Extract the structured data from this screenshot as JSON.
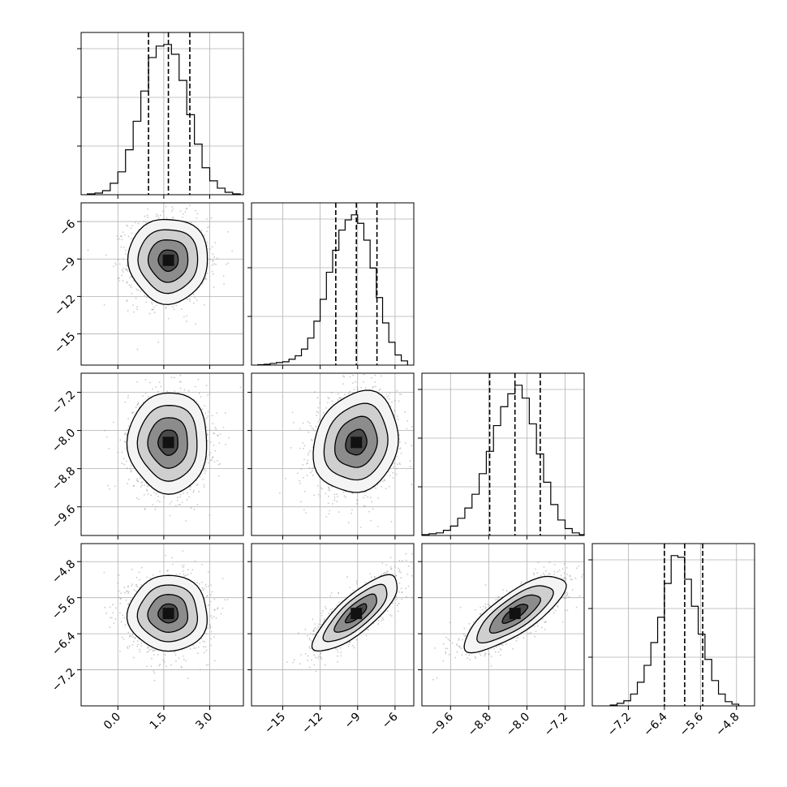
{
  "chart_data": {
    "type": "scatter",
    "layout": "corner",
    "grid": true,
    "colors": {
      "line": "#000000",
      "grid": "#b0b0b0",
      "points": "#8a8a8a",
      "hist_fill": "none"
    },
    "parameters": [
      {
        "range": [
          -1.2,
          4.1
        ],
        "ticks": [
          "0.0",
          "1.5",
          "3.0"
        ],
        "tick_values": [
          0.0,
          1.5,
          3.0
        ],
        "quantiles": [
          1.0,
          1.65,
          2.35
        ],
        "mean": 1.65,
        "sd": 0.65
      },
      {
        "range": [
          -17.5,
          -4.5
        ],
        "ticks": [
          "−15",
          "−12",
          "−9",
          "−6"
        ],
        "tick_values": [
          -15,
          -12,
          -9,
          -6
        ],
        "quantiles": [
          -10.75,
          -9.1,
          -7.45
        ],
        "mean": -9.1,
        "sd": 1.7
      },
      {
        "range": [
          -10.2,
          -6.8
        ],
        "ticks": [
          "−9.6",
          "−8.8",
          "−8.0",
          "−7.2"
        ],
        "tick_values": [
          -9.6,
          -8.8,
          -8.0,
          -7.2
        ],
        "quantiles": [
          -8.78,
          -8.25,
          -7.72
        ],
        "mean": -8.25,
        "sd": 0.53
      },
      {
        "range": [
          -8.0,
          -4.4
        ],
        "ticks": [
          "−7.2",
          "−6.4",
          "−5.6",
          "−4.8"
        ],
        "tick_values": [
          -7.2,
          -6.4,
          -5.6,
          -4.8
        ],
        "quantiles": [
          -6.4,
          -5.95,
          -5.55
        ],
        "mean": -5.95,
        "sd": 0.42
      }
    ],
    "histograms": [
      {
        "param": 0,
        "bin_edges": [
          -1.0,
          -0.75,
          -0.5,
          -0.25,
          0.0,
          0.25,
          0.5,
          0.75,
          1.0,
          1.25,
          1.5,
          1.75,
          2.0,
          2.25,
          2.5,
          2.75,
          3.0,
          3.25,
          3.5,
          3.75,
          4.0
        ],
        "counts": [
          1,
          2,
          5,
          14,
          28,
          55,
          90,
          127,
          168,
          182,
          184,
          172,
          140,
          98,
          62,
          33,
          17,
          8,
          3,
          1
        ]
      },
      {
        "param": 1,
        "bin_edges": [
          -17.0,
          -16.5,
          -16.0,
          -15.5,
          -15.0,
          -14.5,
          -14.0,
          -13.5,
          -13.0,
          -12.5,
          -12.0,
          -11.5,
          -11.0,
          -10.5,
          -10.0,
          -9.5,
          -9.0,
          -8.5,
          -8.0,
          -7.5,
          -7.0,
          -6.5,
          -6.0,
          -5.5,
          -5.0
        ],
        "counts": [
          0.5,
          1,
          2,
          3,
          4,
          7,
          11,
          19,
          32,
          52,
          78,
          110,
          136,
          160,
          172,
          178,
          168,
          148,
          115,
          80,
          50,
          27,
          12,
          5
        ]
      },
      {
        "param": 2,
        "bin_edges": [
          -10.2,
          -10.05,
          -9.9,
          -9.75,
          -9.6,
          -9.45,
          -9.3,
          -9.15,
          -9.0,
          -8.85,
          -8.7,
          -8.55,
          -8.4,
          -8.25,
          -8.1,
          -7.95,
          -7.8,
          -7.65,
          -7.5,
          -7.35,
          -7.2,
          -7.05,
          -6.9,
          -6.8
        ],
        "counts": [
          1,
          2,
          3,
          6,
          11,
          20,
          32,
          48,
          72,
          98,
          128,
          150,
          165,
          175,
          160,
          130,
          95,
          62,
          36,
          18,
          8,
          3,
          1
        ]
      },
      {
        "param": 3,
        "bin_edges": [
          -7.6,
          -7.45,
          -7.3,
          -7.15,
          -7.0,
          -6.85,
          -6.7,
          -6.55,
          -6.4,
          -6.25,
          -6.1,
          -5.95,
          -5.8,
          -5.65,
          -5.5,
          -5.35,
          -5.2,
          -5.05,
          -4.9,
          -4.75
        ],
        "counts": [
          1,
          3,
          6,
          14,
          28,
          48,
          75,
          105,
          145,
          178,
          176,
          150,
          118,
          85,
          55,
          30,
          14,
          5,
          2
        ]
      }
    ],
    "pairs": [
      {
        "x": 0,
        "y": 1,
        "correlation": 0.0
      },
      {
        "x": 0,
        "y": 2,
        "correlation": 0.0
      },
      {
        "x": 1,
        "y": 2,
        "correlation": 0.15
      },
      {
        "x": 0,
        "y": 3,
        "correlation": 0.0
      },
      {
        "x": 1,
        "y": 3,
        "correlation": 0.8
      },
      {
        "x": 2,
        "y": 3,
        "correlation": 0.78
      }
    ],
    "contour_levels": [
      0.5,
      1.0,
      1.5,
      2.0
    ]
  }
}
